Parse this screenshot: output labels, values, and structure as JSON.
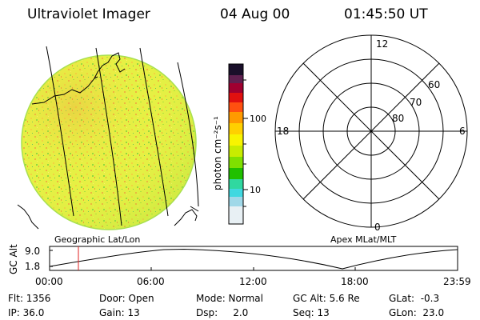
{
  "header": {
    "instrument": "Ultraviolet Imager",
    "date": "04 Aug 00",
    "time": "01:45:50 UT"
  },
  "colorbar": {
    "unit_label": "photon cm⁻²s⁻¹",
    "tick_100": "100",
    "tick_10": "10",
    "colors": [
      "#ffffff",
      "#d0e8f0",
      "#40e0d0",
      "#00c000",
      "#80e000",
      "#f0f000",
      "#ffd000",
      "#ff9000",
      "#ff4000",
      "#e00000",
      "#800040",
      "#402060",
      "#000000"
    ]
  },
  "polar": {
    "label_top": "12",
    "label_left": "18",
    "label_right": "6",
    "label_bottom": "0",
    "lat_60": "60",
    "lat_70": "70",
    "lat_80": "80"
  },
  "projection": {
    "left_title": "Geographic Lat/Lon",
    "right_title": "Apex MLat/MLT"
  },
  "altitude_plot": {
    "ylabel": "GC Alt",
    "yticks": [
      "9.0",
      "1.8"
    ],
    "xticks": [
      "00:00",
      "06:00",
      "12:00",
      "18:00",
      "23:59"
    ]
  },
  "info": {
    "flt": "Flt: 1356",
    "ip": "IP: 36.0",
    "door": "Door: Open",
    "gain": "Gain: 13",
    "mode": "Mode: Normal",
    "dsp": "Dsp:     2.0",
    "gcalt": "GC Alt: 5.6 Re",
    "seq": "Seq: 13",
    "glat": "GLat:  -0.3",
    "glon": "GLon:  23.0"
  }
}
